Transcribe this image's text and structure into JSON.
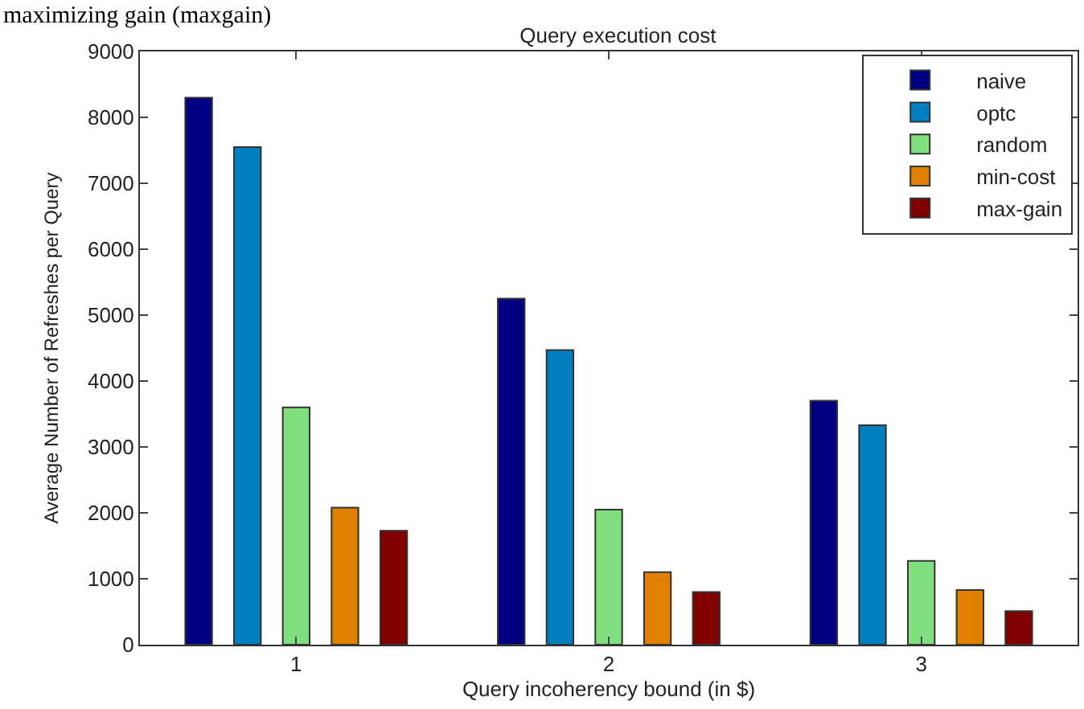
{
  "chart_data": {
    "type": "bar",
    "title": "Query execution cost",
    "xlabel": "Query incoherency bound (in $)",
    "ylabel": "Average Number of Refreshes per Query",
    "annotations": [
      "maximizing gain (maxgain)"
    ],
    "categories": [
      "1",
      "2",
      "3"
    ],
    "series": [
      {
        "name": "naive",
        "color": "#000080",
        "values": [
          8300,
          5250,
          3700
        ]
      },
      {
        "name": "optc",
        "color": "#0080c0",
        "values": [
          7550,
          4470,
          3330
        ]
      },
      {
        "name": "random",
        "color": "#80e080",
        "values": [
          3600,
          2050,
          1270
        ]
      },
      {
        "name": "min-cost",
        "color": "#e08000",
        "values": [
          2080,
          1100,
          830
        ]
      },
      {
        "name": "max-gain",
        "color": "#800000",
        "values": [
          1730,
          800,
          510
        ]
      }
    ],
    "ylim": [
      0,
      9000
    ],
    "yticks": [
      0,
      1000,
      2000,
      3000,
      4000,
      5000,
      6000,
      7000,
      8000,
      9000
    ],
    "legend": "top right"
  }
}
